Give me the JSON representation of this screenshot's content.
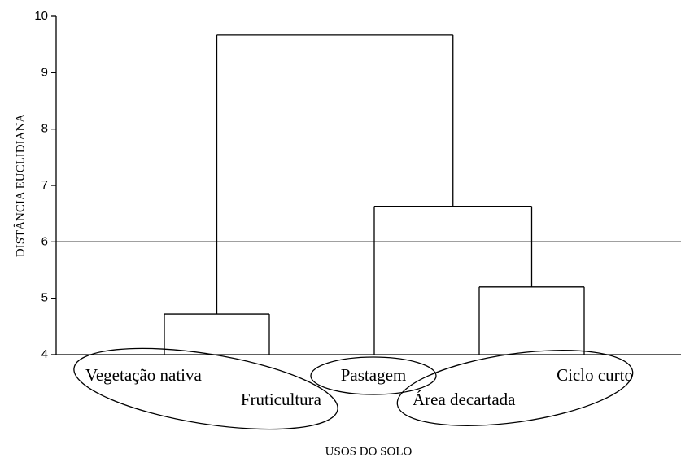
{
  "chart_data": {
    "type": "dendrogram",
    "ylabel": "DISTÂNCIA EUCLIDIANA",
    "xlabel": "USOS DO SOLO",
    "categories": [
      "Vegetação nativa",
      "Fruticultura",
      "Pastagem",
      "Área decartada",
      "Ciclo curto"
    ],
    "merges": [
      {
        "nodes": [
          0,
          1
        ],
        "height": 4.72
      },
      {
        "nodes": [
          3,
          4
        ],
        "height": 5.2
      },
      {
        "nodes": [
          2,
          6
        ],
        "height": 6.63
      },
      {
        "nodes": [
          5,
          7
        ],
        "height": 9.67
      }
    ],
    "reference_line": 6,
    "ylim": [
      4,
      10
    ],
    "yticks": [
      4,
      5,
      6,
      7,
      8,
      9,
      10
    ],
    "color": "#000000"
  }
}
